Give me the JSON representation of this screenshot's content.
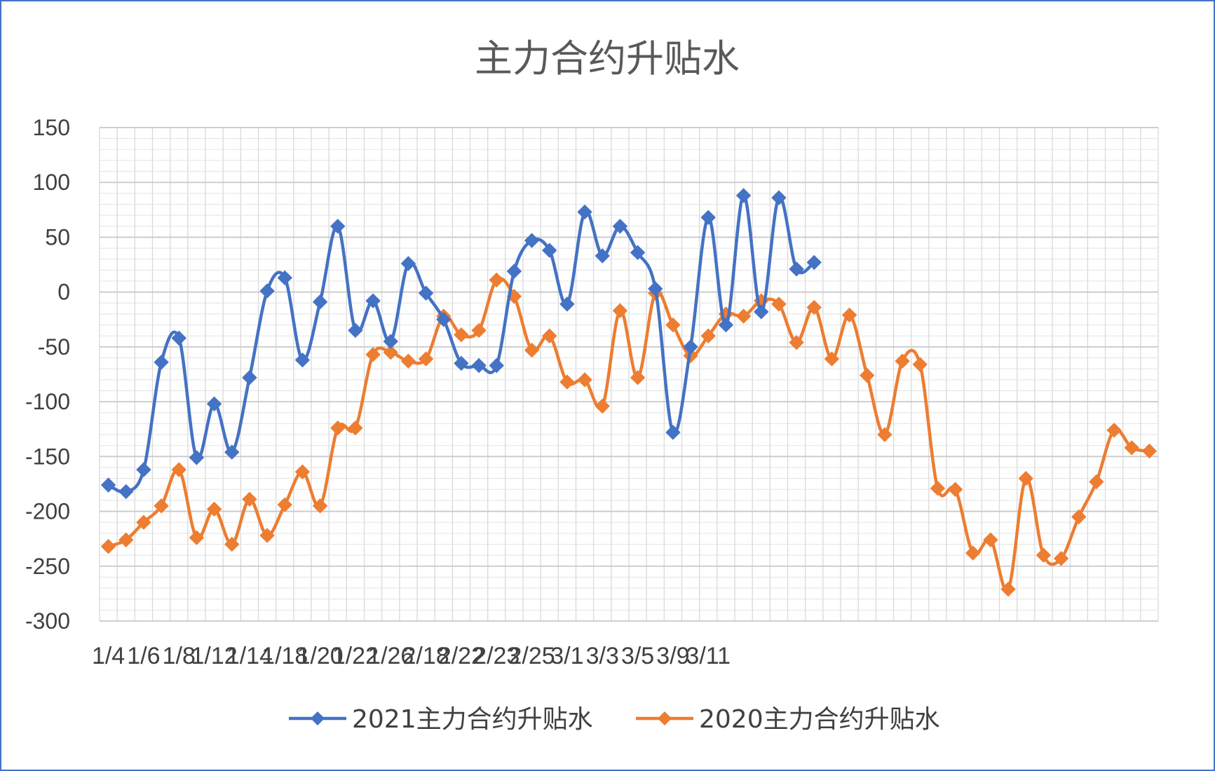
{
  "chart_data": {
    "type": "line",
    "title": "主力合约升贴水",
    "xlabel": "",
    "ylabel": "",
    "ylim": [
      -300,
      150
    ],
    "yticks": [
      150,
      100,
      50,
      0,
      -50,
      -100,
      -150,
      -200,
      -250,
      -300
    ],
    "ytick_labels": [
      "150",
      "100",
      "50",
      "0",
      "-50",
      "-100",
      "-150",
      "-200",
      "-250",
      "-300"
    ],
    "x_tick_labels": [
      "1/4",
      "1/6",
      "1/8",
      "1/12",
      "1/14",
      "1/18",
      "1/20",
      "1/22",
      "1/26",
      "2/18",
      "2/22",
      "2/23",
      "2/25",
      "3/1",
      "3/3",
      "3/5",
      "3/9",
      "3/11"
    ],
    "x_count": 60,
    "grid": true,
    "legend_position": "bottom",
    "series": [
      {
        "name": "2021主力合约升贴水",
        "color": "#4472c4",
        "values": [
          -176,
          -182,
          -162,
          -64,
          -42,
          -151,
          -102,
          -146,
          -78,
          1,
          13,
          -62,
          -9,
          60,
          -35,
          -8,
          -45,
          26,
          -1,
          -25,
          -65,
          -67,
          -67,
          19,
          47,
          38,
          -11,
          73,
          33,
          60,
          36,
          3,
          -128,
          -50,
          68,
          -30,
          88,
          -18,
          86,
          21,
          27
        ]
      },
      {
        "name": "2020主力合约升贴水",
        "color": "#ed7d31",
        "values": [
          -232,
          -226,
          -210,
          -195,
          -162,
          -224,
          -198,
          -230,
          -189,
          -222,
          -194,
          -164,
          -195,
          -124,
          -124,
          -57,
          -55,
          -63,
          -61,
          -22,
          -39,
          -35,
          11,
          -4,
          -53,
          -40,
          -82,
          -80,
          -104,
          -17,
          -78,
          -1,
          -30,
          -58,
          -40,
          -20,
          -22,
          -8,
          -11,
          -46,
          -14,
          -61,
          -21,
          -76,
          -130,
          -63,
          -66,
          -179,
          -180,
          -238,
          -226,
          -271,
          -170,
          -240,
          -243,
          -205,
          -173,
          -126,
          -142,
          -145
        ]
      }
    ]
  }
}
